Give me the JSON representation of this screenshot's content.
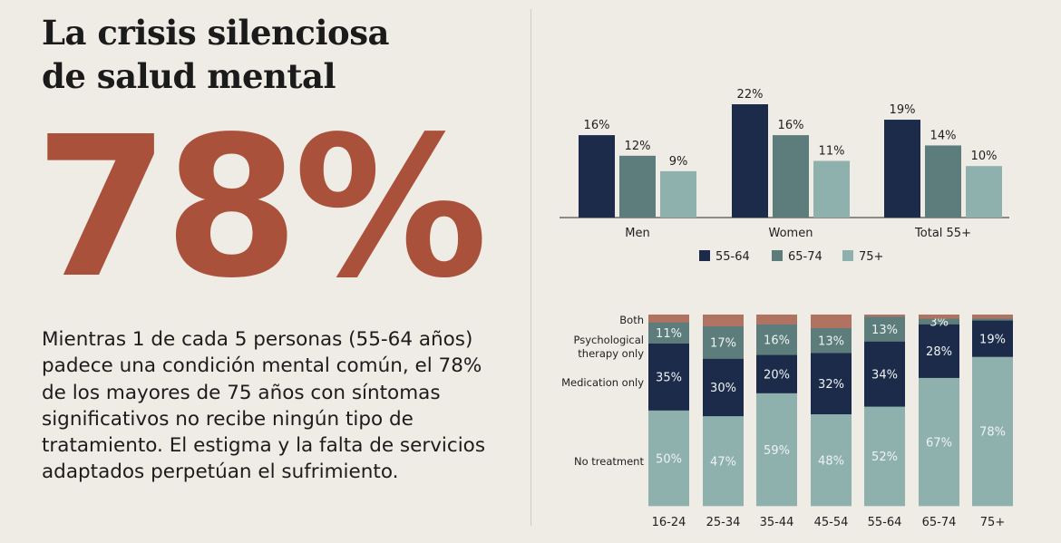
{
  "headline": {
    "line1": "La crisis silenciosa",
    "line2": "de salud mental"
  },
  "big_stat": "78%",
  "body_text": "Mientras 1 de cada 5 personas (55-64 años) padece una condición mental común, el 78% de los mayores de 75 años con síntomas significativos no recibe ningún tipo de tratamiento. El estigma y la falta de servicios adaptados perpetúan el sufrimiento.",
  "colors": {
    "background": "#efebe5",
    "accent": "#a9513a",
    "age_55_64": "#1c2b4a",
    "age_65_74": "#5d7d7d",
    "age_75_plus": "#8fb1ae",
    "no_treatment": "#8fb1ae",
    "medication_only": "#1c2b4a",
    "psychological_only": "#5d7d7d",
    "both": "#b07362"
  },
  "chart_data": [
    {
      "type": "bar",
      "categories": [
        "Men",
        "Women",
        "Total 55+"
      ],
      "series": [
        {
          "name": "55-64",
          "values": [
            16,
            22,
            19
          ],
          "labels": [
            "16%",
            "22%",
            "19%"
          ]
        },
        {
          "name": "65-74",
          "values": [
            12,
            16,
            14
          ],
          "labels": [
            "12%",
            "16%",
            "14%"
          ]
        },
        {
          "name": "75+",
          "values": [
            9,
            11,
            10
          ],
          "labels": [
            "9%",
            "11%",
            "10%"
          ]
        }
      ],
      "ylim": [
        0,
        22
      ],
      "legend_position": "bottom",
      "grid": false
    },
    {
      "type": "bar",
      "stacked": true,
      "categories": [
        "16-24",
        "25-34",
        "35-44",
        "45-54",
        "55-64",
        "65-74",
        "75+"
      ],
      "series": [
        {
          "name": "No treatment",
          "values": [
            50,
            47,
            59,
            48,
            52,
            67,
            78
          ],
          "labels": [
            "50%",
            "47%",
            "59%",
            "48%",
            "52%",
            "67%",
            "78%"
          ]
        },
        {
          "name": "Medication only",
          "values": [
            35,
            30,
            20,
            32,
            34,
            28,
            19
          ],
          "labels": [
            "35%",
            "30%",
            "20%",
            "32%",
            "34%",
            "28%",
            "19%"
          ]
        },
        {
          "name": "Psychological therapy only",
          "values": [
            11,
            17,
            16,
            13,
            13,
            3,
            1
          ],
          "labels": [
            "11%",
            "17%",
            "16%",
            "13%",
            "13%",
            "3%",
            ""
          ]
        },
        {
          "name": "Both",
          "values": [
            4,
            6,
            5,
            7,
            1,
            2,
            2
          ],
          "labels": [
            "",
            "",
            "",
            "",
            "",
            "",
            ""
          ]
        }
      ],
      "ylim": [
        0,
        100
      ],
      "legend_position": "left",
      "grid": false
    }
  ]
}
